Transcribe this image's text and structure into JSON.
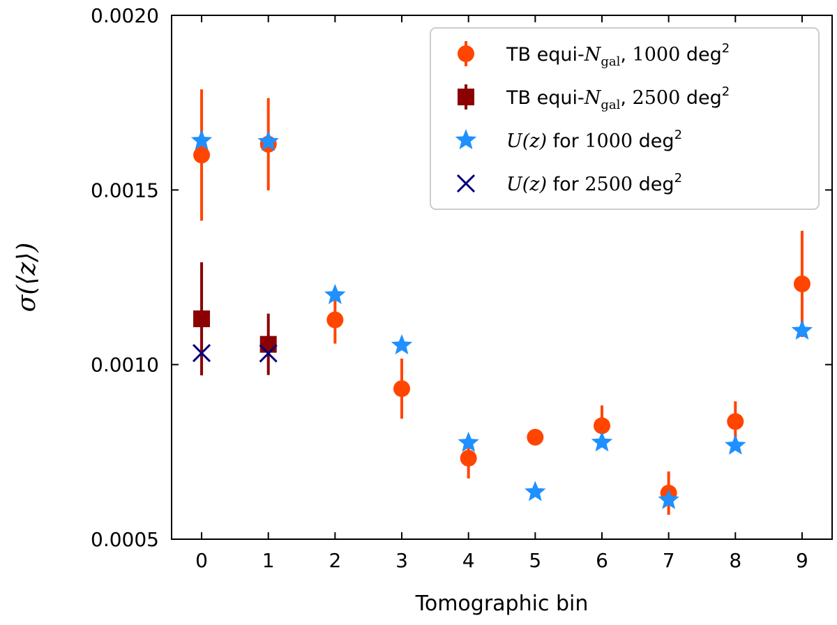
{
  "chart_data": {
    "type": "scatter",
    "title": "",
    "xlabel": "Tomographic bin",
    "ylabel": "σ(⟨z⟩)",
    "xlim": [
      -0.45,
      9.45
    ],
    "ylim": [
      0.0005,
      0.002
    ],
    "xticks": [
      0,
      1,
      2,
      3,
      4,
      5,
      6,
      7,
      8,
      9
    ],
    "xtick_labels": [
      "0",
      "1",
      "2",
      "3",
      "4",
      "5",
      "6",
      "7",
      "8",
      "9"
    ],
    "yticks": [
      0.0005,
      0.001,
      0.0015,
      0.002
    ],
    "ytick_labels": [
      "0.0005",
      "0.0010",
      "0.0015",
      "0.0020"
    ],
    "legend_position": "top-right",
    "series": [
      {
        "name": "TB equi-Ngal, 1000 deg2",
        "legend": {
          "prefix": "TB equi-",
          "var": "N",
          "sub": "gal",
          "sep": ", ",
          "num": "1000",
          "unit": " deg",
          "sup": "2"
        },
        "marker": "circle",
        "color": "#ff4500",
        "x": [
          0,
          1,
          2,
          3,
          4,
          5,
          6,
          7,
          8,
          9
        ],
        "y": [
          0.0016,
          0.001631,
          0.001128,
          0.000931,
          0.000732,
          0.000792,
          0.000825,
          0.000632,
          0.000837,
          0.001231
        ],
        "err": [
          0.000188,
          0.000132,
          6.8e-05,
          8.6e-05,
          5.8e-05,
          0.0,
          5.8e-05,
          6.2e-05,
          5.8e-05,
          0.000152
        ]
      },
      {
        "name": "TB equi-Ngal, 2500 deg2",
        "legend": {
          "prefix": "TB equi-",
          "var": "N",
          "sub": "gal",
          "sep": ", ",
          "num": "2500",
          "unit": " deg",
          "sup": "2"
        },
        "marker": "square",
        "color": "#8b0000",
        "x": [
          0,
          1
        ],
        "y": [
          0.001131,
          0.001058
        ],
        "err": [
          0.000162,
          8.8e-05
        ]
      },
      {
        "name": "U(z) for 1000 deg2",
        "legend": {
          "prefix": "",
          "var": "U(z)",
          "sub": "",
          "sep": " for ",
          "num": "1000",
          "unit": " deg",
          "sup": "2"
        },
        "marker": "star",
        "color": "#1e90ff",
        "x": [
          0,
          1,
          2,
          3,
          4,
          5,
          6,
          7,
          8,
          9
        ],
        "y": [
          0.001641,
          0.001638,
          0.001199,
          0.001055,
          0.000776,
          0.000635,
          0.000777,
          0.000612,
          0.000768,
          0.001097
        ]
      },
      {
        "name": "U(z) for 2500 deg2",
        "legend": {
          "prefix": "",
          "var": "U(z)",
          "sub": "",
          "sep": " for ",
          "num": "2500",
          "unit": " deg",
          "sup": "2"
        },
        "marker": "x",
        "color": "#000080",
        "x": [
          0,
          1
        ],
        "y": [
          0.001033,
          0.001032
        ]
      }
    ]
  }
}
